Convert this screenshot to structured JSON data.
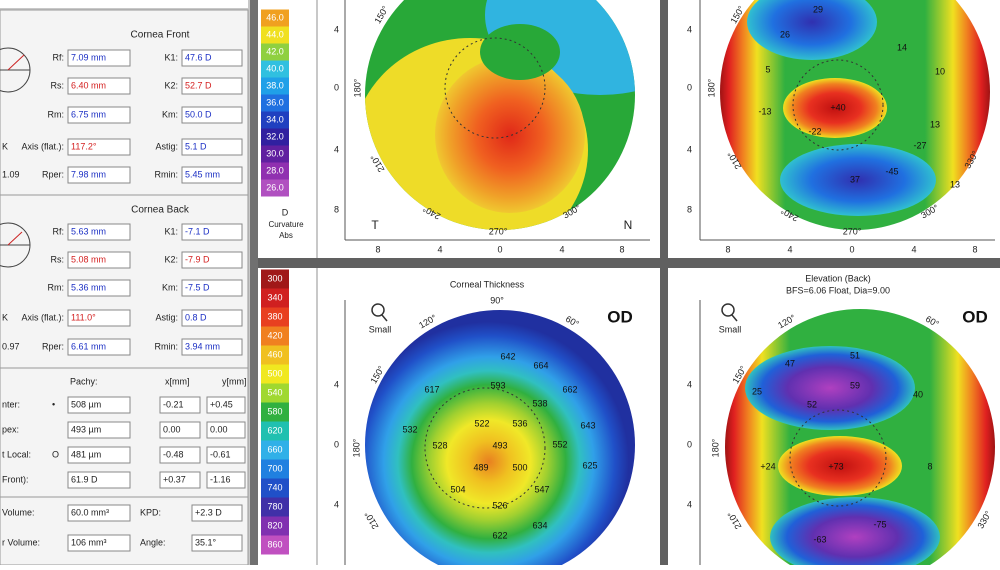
{
  "front": {
    "title": "Cornea Front",
    "rows": [
      {
        "cells": [
          "Rf:",
          "7.09 mm",
          "K1:",
          "47.6 D"
        ],
        "colors": [
          "#1b2fc4",
          "#1b2fc4"
        ]
      },
      {
        "cells": [
          "Rs:",
          "6.40 mm",
          "K2:",
          "52.7 D"
        ],
        "colors": [
          "#d42020",
          "#d42020"
        ]
      },
      {
        "cells": [
          "Rm:",
          "6.75 mm",
          "Km:",
          "50.0 D"
        ],
        "colors": [
          "#1b2fc4",
          "#1b2fc4"
        ]
      },
      {
        "lead": "K",
        "cells": [
          "Axis (flat.):",
          "117.2°",
          "Astig:",
          "5.1 D"
        ],
        "colors": [
          "#d42020",
          "#1b2fc4"
        ]
      },
      {
        "lead": "1.09",
        "cells": [
          "Rper:",
          "7.98 mm",
          "Rmin:",
          "5.45 mm"
        ],
        "colors": [
          "#1b2fc4",
          "#1b2fc4"
        ]
      }
    ]
  },
  "back": {
    "title": "Cornea Back",
    "rows": [
      {
        "cells": [
          "Rf:",
          "5.63 mm",
          "K1:",
          "-7.1 D"
        ],
        "colors": [
          "#1b2fc4",
          "#1b2fc4"
        ]
      },
      {
        "cells": [
          "Rs:",
          "5.08 mm",
          "K2:",
          "-7.9 D"
        ],
        "colors": [
          "#d42020",
          "#d42020"
        ]
      },
      {
        "cells": [
          "Rm:",
          "5.36 mm",
          "Km:",
          "-7.5 D"
        ],
        "colors": [
          "#1b2fc4",
          "#1b2fc4"
        ]
      },
      {
        "lead": "K",
        "cells": [
          "Axis (flat.):",
          "111.0°",
          "Astig:",
          "0.8 D"
        ],
        "colors": [
          "#d42020",
          "#1b2fc4"
        ]
      },
      {
        "lead": "0.97",
        "cells": [
          "Rper:",
          "6.61 mm",
          "Rmin:",
          "3.94 mm"
        ],
        "colors": [
          "#1b2fc4",
          "#1b2fc4"
        ]
      }
    ]
  },
  "pachy": {
    "headers": [
      "Pachy:",
      "x[mm]",
      "y[mm]"
    ],
    "rows": [
      [
        "nter:",
        "•",
        "508 µm",
        "-0.21",
        "+0.45"
      ],
      [
        "pex:",
        "",
        "493 µm",
        "0.00",
        "0.00"
      ],
      [
        "t Local:",
        "O",
        "481 µm",
        "-0.48",
        "-0.61"
      ],
      [
        "Front):",
        "",
        "61.9 D",
        "+0.37",
        "-1.16"
      ]
    ]
  },
  "volume": {
    "rows": [
      [
        "Volume:",
        "60.0 mm³",
        "KPD:",
        "+2.3 D"
      ],
      [
        "r Volume:",
        "106 mm³",
        "Angle:",
        "35.1°"
      ]
    ]
  },
  "scale_top": {
    "values": [
      "46.0",
      "44.0",
      "42.0",
      "40.0",
      "38.0",
      "36.0",
      "34.0",
      "32.0",
      "30.0",
      "28.0",
      "26.0"
    ],
    "colors": [
      "#f0a020",
      "#f0e020",
      "#8fd040",
      "#30c0e0",
      "#20a0e8",
      "#2070e0",
      "#2040c0",
      "#3020a0",
      "#6020a0",
      "#9030b0",
      "#b050c0"
    ],
    "unit": "D",
    "name": "Curvature",
    "mode": "Abs"
  },
  "scale_bottom": {
    "values": [
      "300",
      "340",
      "380",
      "420",
      "460",
      "500",
      "540",
      "580",
      "620",
      "660",
      "700",
      "740",
      "780",
      "820",
      "860"
    ],
    "colors": [
      "#a01818",
      "#d02020",
      "#e84020",
      "#f08020",
      "#f0c020",
      "#f0e820",
      "#a0d830",
      "#30b040",
      "#20c0b0",
      "#30b0e8",
      "#2080e0",
      "#2050c8",
      "#4030a8",
      "#8030b0",
      "#c050c0"
    ]
  },
  "map_front": {
    "axis_left": [
      "4",
      "0",
      "4",
      "8"
    ],
    "axis_bottom": [
      "8",
      "4",
      "0",
      "4",
      "8"
    ],
    "left_side": "T",
    "right_side": "N",
    "angles": [
      "150°",
      "180°",
      "210°",
      "240°",
      "270°",
      "300°"
    ]
  },
  "map_elev_front": {
    "angles": [
      "150°",
      "180°",
      "210°",
      "240°",
      "270°",
      "300°",
      "330°"
    ],
    "axis_left": [
      "4",
      "0",
      "4",
      "8"
    ],
    "axis_bottom": [
      "8",
      "4",
      "0",
      "4",
      "8"
    ],
    "labels": [
      "29",
      "26",
      "14",
      "5",
      "10",
      "-13",
      "+40",
      "-22",
      "13",
      "-27",
      "-45",
      "37",
      "13"
    ]
  },
  "map_thickness": {
    "title": "Corneal Thickness",
    "eye": "OD",
    "zoom": "Small",
    "angles": [
      "90°",
      "120°",
      "60°",
      "150°",
      "180°",
      "210°"
    ],
    "axis_left": [
      "4",
      "0",
      "4"
    ],
    "labels": [
      "642",
      "664",
      "617",
      "593",
      "538",
      "662",
      "522",
      "536",
      "528",
      "493",
      "532",
      "552",
      "489",
      "500",
      "643",
      "625",
      "504",
      "547",
      "526",
      "634",
      "622"
    ]
  },
  "map_elev_back": {
    "title": "Elevation (Back)",
    "subtitle": "BFS=6.06 Float, Dia=9.00",
    "eye": "OD",
    "zoom": "Small",
    "angles": [
      "120°",
      "60°",
      "150°",
      "180°",
      "210°",
      "330°"
    ],
    "axis_left": [
      "4",
      "0",
      "4"
    ],
    "labels": [
      "47",
      "51",
      "59",
      "52",
      "25",
      "40",
      "+24",
      "+73",
      "8",
      "-63",
      "-75"
    ]
  }
}
